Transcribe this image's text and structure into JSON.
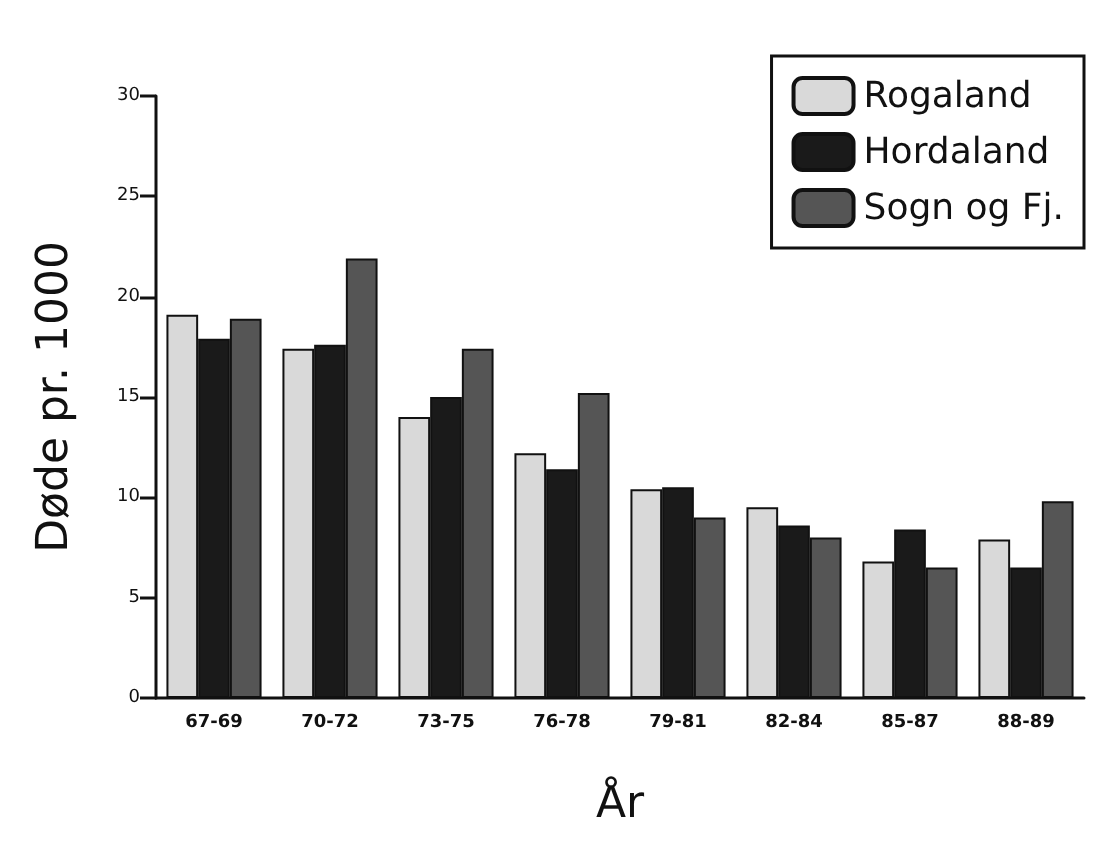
{
  "chart_data": {
    "type": "bar",
    "xlabel": "År",
    "ylabel": "Døde pr. 1000",
    "categories": [
      "67-69",
      "70-72",
      "73-75",
      "76-78",
      "79-81",
      "82-84",
      "85-87",
      "88-89"
    ],
    "series": [
      {
        "name": "Rogaland",
        "color": "#d9d9d9",
        "values": [
          19.1,
          17.4,
          14.0,
          12.2,
          10.4,
          9.5,
          6.8,
          7.9
        ]
      },
      {
        "name": "Hordaland",
        "color": "#1a1a1a",
        "values": [
          17.9,
          17.6,
          15.0,
          11.4,
          10.5,
          8.6,
          8.4,
          6.5
        ]
      },
      {
        "name": "Sogn og Fj.",
        "color": "#555555",
        "values": [
          18.9,
          21.9,
          17.4,
          15.2,
          9.0,
          8.0,
          6.5,
          9.8
        ]
      }
    ],
    "ylim": [
      0,
      30
    ],
    "yticks": [
      0,
      5,
      10,
      15,
      20,
      25,
      30
    ],
    "grid": false,
    "legend": "top right"
  }
}
